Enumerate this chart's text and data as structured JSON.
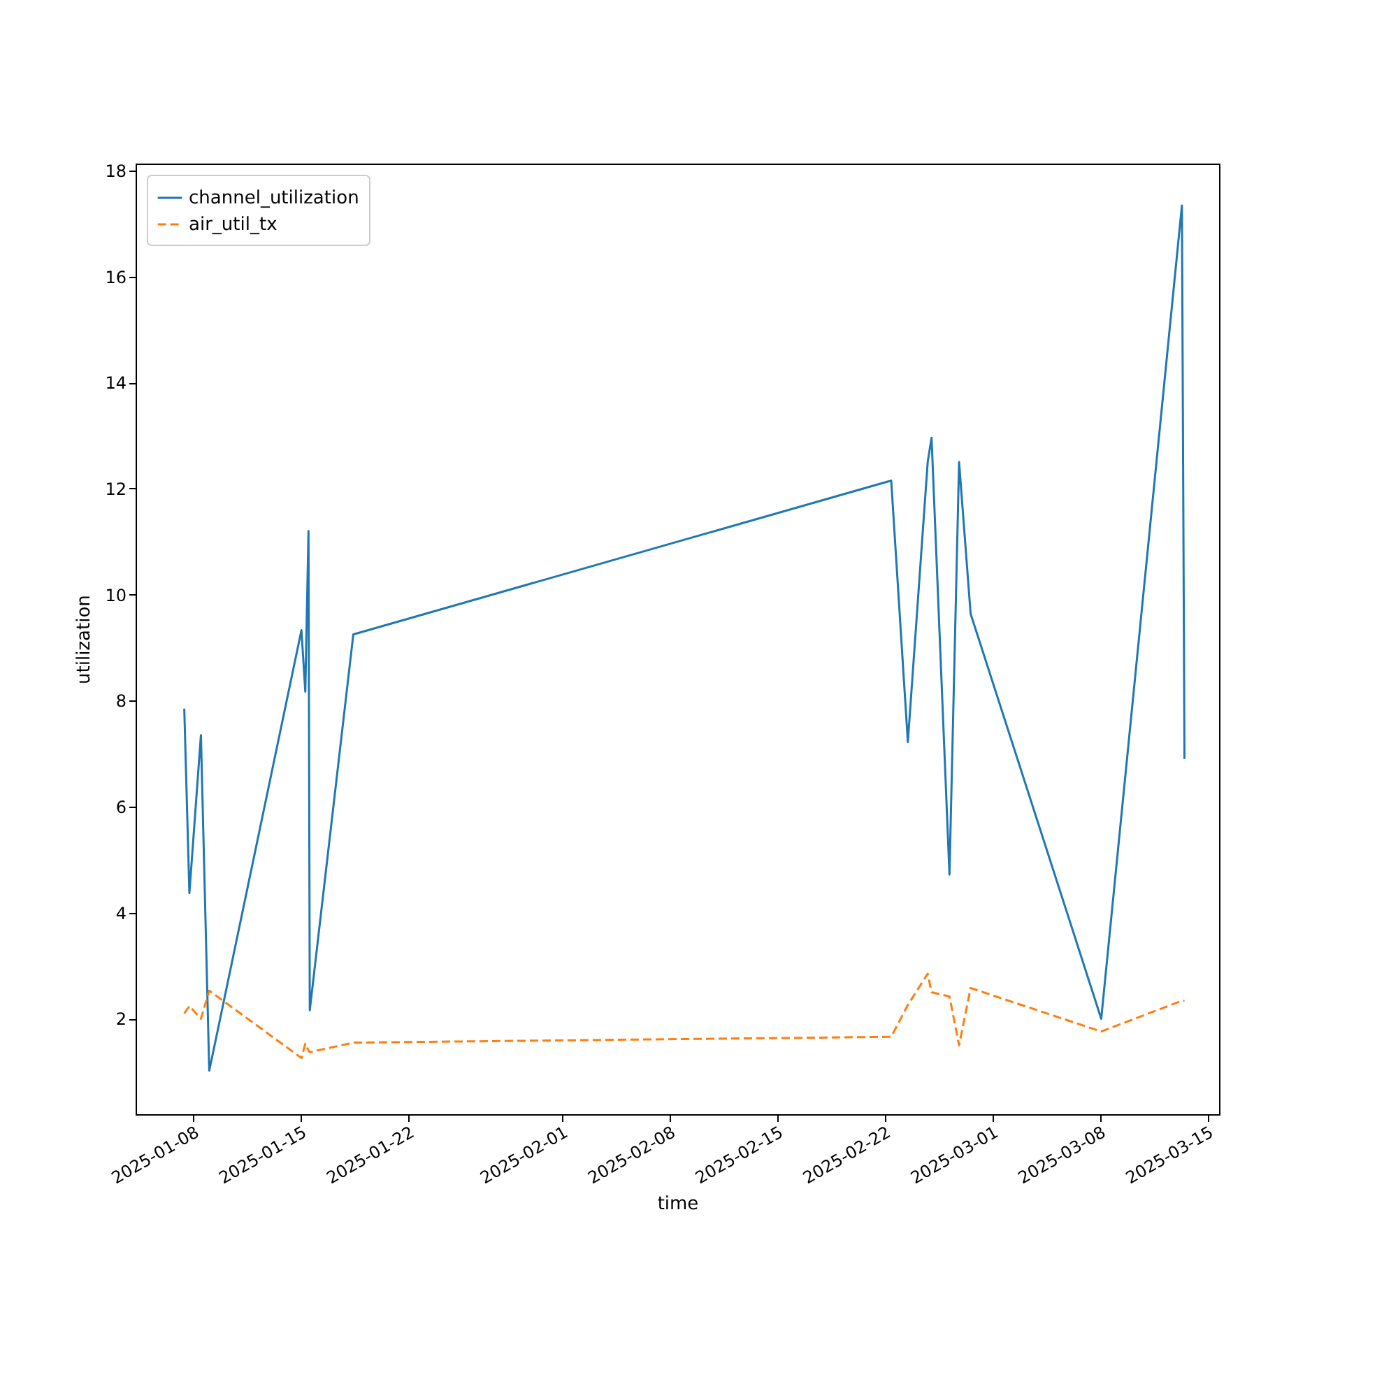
{
  "chart_data": {
    "type": "line",
    "xlabel": "time",
    "ylabel": "utilization",
    "x": [
      "2025-01-07T10:00",
      "2025-01-07T18:00",
      "2025-01-08T12:00",
      "2025-01-09T01:00",
      "2025-01-15T01:00",
      "2025-01-15T07:00",
      "2025-01-15T12:00",
      "2025-01-15T14:00",
      "2025-01-18T10:00",
      "2025-02-22T10:00",
      "2025-02-23T12:00",
      "2025-02-24T19:00",
      "2025-02-25T01:00",
      "2025-02-26T05:00",
      "2025-02-26T20:00",
      "2025-02-27T14:00",
      "2025-03-08T02:00",
      "2025-03-13T08:00",
      "2025-03-13T12:00"
    ],
    "series": [
      {
        "name": "channel_utilization",
        "color": "#1f77b4",
        "line_style": "solid",
        "values": [
          7.85,
          4.37,
          7.35,
          1.02,
          9.33,
          8.17,
          11.2,
          2.16,
          9.25,
          12.15,
          7.22,
          12.5,
          12.96,
          4.72,
          12.5,
          9.64,
          2.0,
          17.34,
          6.9
        ]
      },
      {
        "name": "air_util_tx",
        "color": "#ff7f0e",
        "line_style": "dashed",
        "values": [
          2.1,
          2.24,
          2.0,
          2.53,
          1.26,
          1.53,
          1.4,
          1.37,
          1.55,
          1.66,
          2.26,
          2.85,
          2.5,
          2.42,
          1.5,
          2.58,
          1.76,
          2.34,
          2.34
        ]
      }
    ],
    "xlim": [
      "2025-01-04T06:00",
      "2025-03-15T18:00"
    ],
    "xticks": [
      "2025-01-08",
      "2025-01-15",
      "2025-01-22",
      "2025-02-01",
      "2025-02-08",
      "2025-02-15",
      "2025-02-22",
      "2025-03-01",
      "2025-03-08",
      "2025-03-15"
    ],
    "ylim": [
      0.2,
      18.13
    ],
    "yticks": [
      2,
      4,
      6,
      8,
      10,
      12,
      14,
      16,
      18
    ],
    "legend": "top left"
  }
}
